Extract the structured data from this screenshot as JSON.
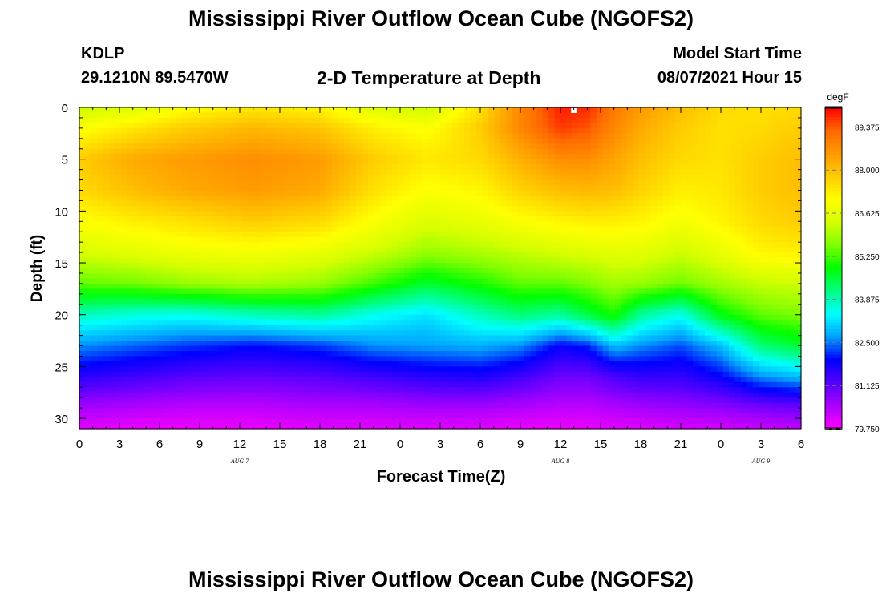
{
  "header": {
    "title": "Mississippi River Outflow Ocean Cube (NGOFS2)",
    "station_id": "KDLP",
    "station_coords": "29.1210N  89.5470W",
    "plot_title": "2-D Temperature at Depth",
    "model_start_label": "Model Start Time",
    "model_start_value": "08/07/2021 Hour 15"
  },
  "footer": {
    "title": "Mississippi River Outflow Ocean Cube (NGOFS2)"
  },
  "chart_data": {
    "type": "heatmap",
    "title": "2-D Temperature at Depth",
    "xlabel": "Forecast Time(Z)",
    "ylabel": "Depth (ft)",
    "x_tick_labels": [
      "0",
      "3",
      "6",
      "9",
      "12",
      "15",
      "18",
      "21",
      "0",
      "3",
      "6",
      "9",
      "12",
      "15",
      "18",
      "21",
      "0",
      "3",
      "6"
    ],
    "date_labels": [
      {
        "label": "AUG 7",
        "hour": 12
      },
      {
        "label": "AUG 8",
        "hour": 36
      },
      {
        "label": "AUG 9",
        "hour": 51
      }
    ],
    "x_range_hours": [
      0,
      54
    ],
    "y_ticks": [
      0,
      5,
      10,
      15,
      20,
      25,
      30
    ],
    "y_range_ft": [
      0,
      31
    ],
    "y_inverted": true,
    "colorbar": {
      "unit": "degF",
      "tick_labels": [
        "89.375",
        "88.000",
        "86.625",
        "85.250",
        "83.875",
        "82.500",
        "81.125",
        "79.750"
      ],
      "min": 79.75,
      "max": 90.0,
      "colors": [
        "#ff00ff",
        "#aa00ff",
        "#5500ff",
        "#0000ff",
        "#00a0ff",
        "#00ffff",
        "#00ff80",
        "#00ff00",
        "#80ff00",
        "#d4ff00",
        "#ffff00",
        "#ffcc00",
        "#ff9900",
        "#ff6600",
        "#ff0000"
      ]
    },
    "profiles": {
      "depth_ft": [
        0,
        2,
        5,
        8,
        11,
        14,
        17,
        20,
        23,
        26,
        29,
        31
      ],
      "hours": [
        0,
        4,
        8,
        13,
        18,
        22,
        26,
        30,
        33,
        36,
        38,
        40,
        42,
        45,
        48,
        51,
        54
      ],
      "temperature_degF": [
        [
          86.2,
          87.0,
          87.8,
          87.6,
          87.0,
          86.4,
          85.4,
          83.8,
          82.6,
          81.6,
          80.5,
          80.0
        ],
        [
          86.5,
          87.4,
          88.3,
          88.0,
          87.3,
          86.6,
          85.5,
          83.6,
          82.4,
          81.4,
          80.4,
          79.9
        ],
        [
          87.0,
          87.8,
          88.5,
          88.3,
          87.5,
          86.8,
          85.8,
          83.5,
          82.2,
          81.2,
          80.3,
          79.9
        ],
        [
          87.4,
          88.1,
          88.7,
          88.5,
          87.8,
          86.9,
          86.0,
          83.8,
          82.0,
          81.1,
          80.3,
          79.9
        ],
        [
          87.2,
          87.9,
          88.5,
          88.3,
          87.6,
          86.7,
          85.8,
          84.0,
          82.2,
          81.2,
          80.4,
          80.0
        ],
        [
          86.5,
          87.3,
          87.8,
          87.5,
          87.0,
          86.3,
          85.2,
          83.5,
          82.6,
          81.4,
          80.4,
          80.0
        ],
        [
          86.3,
          87.0,
          87.4,
          87.0,
          86.5,
          85.8,
          84.6,
          83.2,
          82.7,
          81.6,
          80.5,
          80.0
        ],
        [
          87.5,
          87.8,
          87.6,
          87.2,
          86.7,
          86.0,
          85.0,
          83.8,
          82.8,
          81.7,
          80.5,
          80.0
        ],
        [
          88.8,
          88.8,
          88.2,
          87.7,
          87.0,
          86.2,
          85.4,
          84.2,
          82.6,
          81.4,
          80.4,
          79.9
        ],
        [
          89.8,
          89.6,
          88.7,
          88.0,
          87.2,
          86.4,
          85.4,
          84.0,
          81.9,
          81.0,
          80.3,
          79.9
        ],
        [
          89.7,
          89.4,
          88.7,
          88.1,
          87.3,
          86.5,
          85.6,
          84.5,
          82.1,
          81.0,
          80.3,
          79.9
        ],
        [
          89.0,
          88.8,
          88.4,
          88.0,
          87.3,
          86.6,
          85.9,
          85.0,
          82.9,
          81.3,
          80.4,
          80.0
        ],
        [
          88.5,
          88.3,
          88.0,
          87.7,
          87.2,
          86.6,
          85.8,
          84.0,
          82.6,
          81.5,
          80.5,
          80.0
        ],
        [
          88.0,
          87.8,
          87.6,
          87.3,
          86.9,
          86.3,
          85.5,
          83.5,
          82.3,
          81.5,
          80.6,
          80.1
        ],
        [
          87.6,
          87.5,
          87.5,
          87.4,
          87.2,
          86.7,
          85.9,
          84.8,
          82.9,
          81.9,
          80.7,
          80.1
        ],
        [
          87.5,
          87.6,
          87.8,
          87.8,
          87.6,
          87.2,
          86.2,
          85.4,
          84.2,
          82.6,
          80.9,
          80.2
        ],
        [
          87.6,
          87.8,
          88.0,
          88.0,
          87.8,
          87.3,
          86.3,
          85.6,
          84.6,
          82.9,
          81.0,
          80.3
        ]
      ]
    }
  }
}
